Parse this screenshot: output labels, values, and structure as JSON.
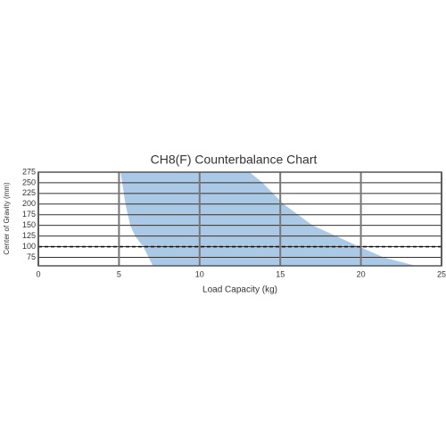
{
  "chart_data": {
    "type": "area",
    "title": "CH8(F) Counterbalance Chart",
    "x_label": "Load Capacity (kg)",
    "y_label": "Center of Gravity (mm)",
    "xlim": [
      0,
      25
    ],
    "xticks": [
      0,
      5,
      10,
      15,
      20,
      25
    ],
    "ylim": [
      55,
      275
    ],
    "yticks": [
      75,
      100,
      125,
      150,
      175,
      200,
      225,
      250,
      275
    ],
    "series": [
      {
        "color": "#a9c9e6",
        "x": [
          5.1,
          5.2,
          5.4,
          5.7,
          6.0,
          6.5,
          7.1,
          23.4,
          21.4,
          19.9,
          17.0,
          15.2,
          13.9,
          13.1
        ],
        "values": [
          275,
          250,
          200,
          150,
          125,
          100,
          55,
          55,
          75,
          100,
          150,
          200,
          250,
          275
        ]
      }
    ],
    "reference_line": 100
  }
}
